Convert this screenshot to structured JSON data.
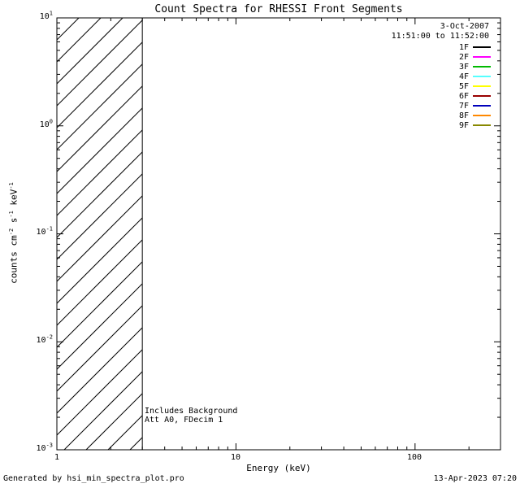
{
  "title": "Count Spectra for RHESSI Front Segments",
  "chart_data": {
    "type": "line",
    "title": "Count Spectra for RHESSI Front Segments",
    "xlabel": "Energy (keV)",
    "ylabel": "counts cm-2 s-1 keV-1",
    "xscale": "log",
    "yscale": "log",
    "xlim": [
      1,
      300
    ],
    "ylim": [
      0.001,
      10
    ],
    "grid": false,
    "x_ticks": [
      "1",
      "10",
      "100"
    ],
    "y_ticks": [
      {
        "base": "10",
        "exp": "1"
      },
      {
        "base": "10",
        "exp": "0"
      },
      {
        "base": "10",
        "exp": "-1"
      },
      {
        "base": "10",
        "exp": "-2"
      },
      {
        "base": "10",
        "exp": "-3"
      }
    ],
    "ylabel_parts": {
      "p1": "counts cm",
      "e1": "-2",
      "p2": " s",
      "e2": "-1",
      "p3": " keV",
      "e3": "-1"
    },
    "hatched_region": {
      "x_start": 1,
      "x_end": 3,
      "style": "diagonal-hatch"
    },
    "series": [],
    "legend": {
      "position": "top-right",
      "date": "3-Oct-2007",
      "time_range": "11:51:00 to 11:52:00",
      "entries": [
        {
          "label": "1F",
          "color": "#000000"
        },
        {
          "label": "2F",
          "color": "#ff00ff"
        },
        {
          "label": "3F",
          "color": "#00bb00"
        },
        {
          "label": "4F",
          "color": "#55ffff"
        },
        {
          "label": "5F",
          "color": "#ffff00"
        },
        {
          "label": "6F",
          "color": "#990000"
        },
        {
          "label": "7F",
          "color": "#0000bb"
        },
        {
          "label": "8F",
          "color": "#ff8800"
        },
        {
          "label": "9F",
          "color": "#888800"
        }
      ]
    },
    "annotations": {
      "line1": "Includes Background",
      "line2": "Att A0, FDecim 1"
    }
  },
  "footer": {
    "left": "Generated by hsi_min_spectra_plot.pro",
    "right": "13-Apr-2023 07:20"
  }
}
